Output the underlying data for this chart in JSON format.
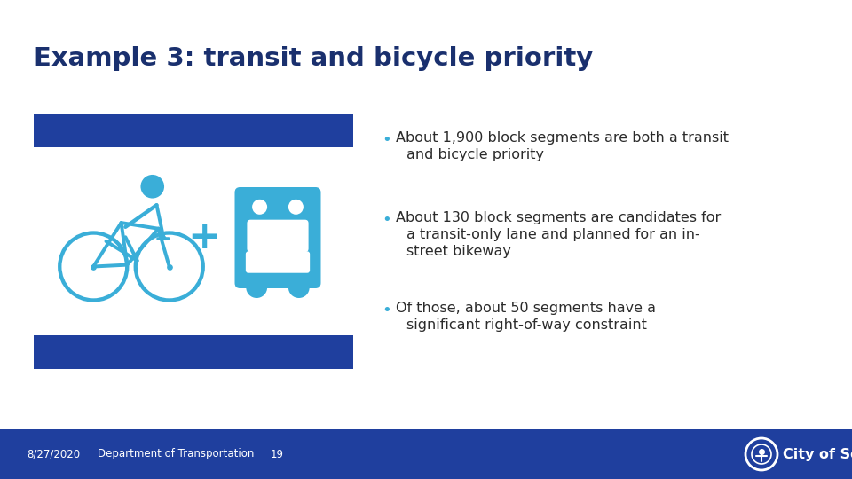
{
  "title": "Example 3: transit and bicycle priority",
  "title_color": "#1a306e",
  "background_color": "#ffffff",
  "blue_bar_color": "#1f3f9e",
  "icon_color": "#3aaed8",
  "bullet_points": [
    [
      "About 1,900 block segments are both a transit",
      "and bicycle priority"
    ],
    [
      "About 130 block segments are candidates for",
      "a transit-only lane and planned for an in-",
      "street bikeway"
    ],
    [
      "Of those, about 50 segments have a",
      "significant right-of-way constraint"
    ]
  ],
  "footer_bg": "#1f3f9e",
  "footer_text_color": "#ffffff",
  "footer_date": "8/27/2020",
  "footer_dept": "Department of Transportation",
  "footer_page": "19",
  "footer_city": "City of Seattle",
  "text_color": "#2b2b2b",
  "bullet_dot_color": "#3aaed8"
}
